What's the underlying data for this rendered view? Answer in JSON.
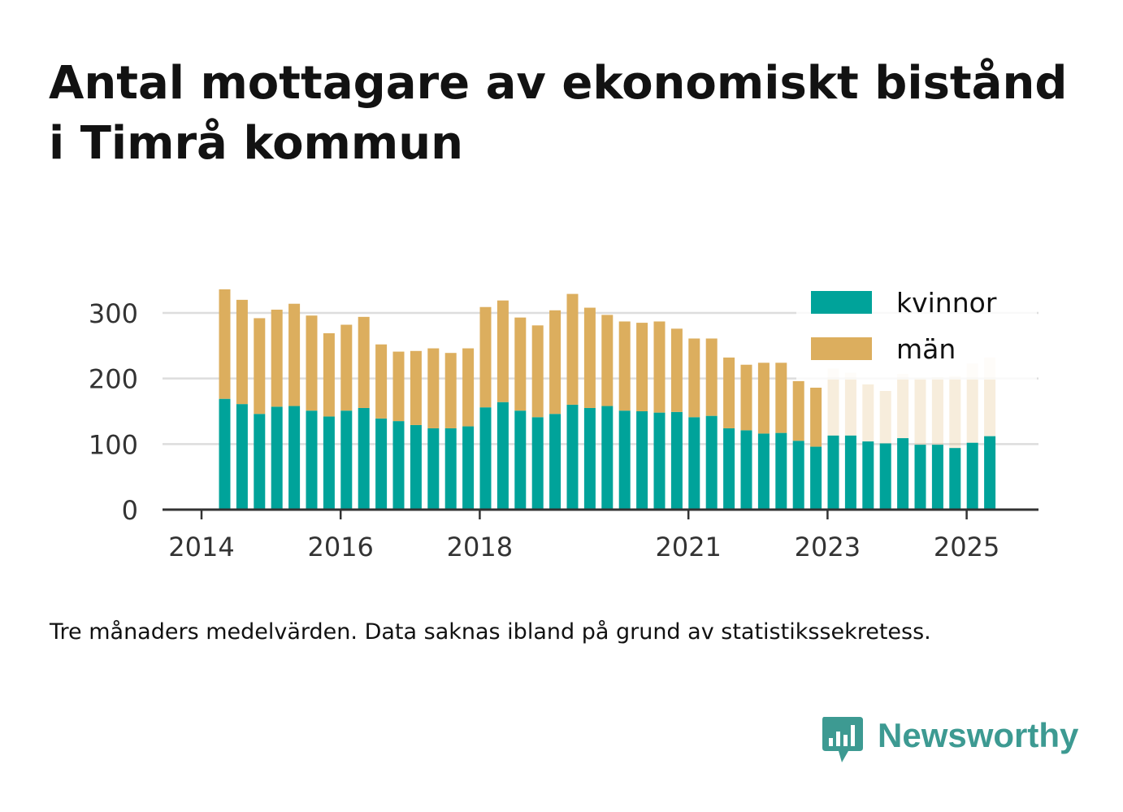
{
  "title": "Antal mottagare av ekonomiskt bistånd i Timrå kommun",
  "caption": "Tre månaders medelvärden. Data saknas ibland på grund av statistikssekretess.",
  "brand": {
    "name": "Newsworthy",
    "icon": "newsworthy-bar-chart-icon",
    "color": "#3d9a92"
  },
  "colors": {
    "kvinnor": "#00a39a",
    "man": "#dcae5e",
    "grid": "#dddddd",
    "axis": "#333333",
    "text": "#333333"
  },
  "chart_data": {
    "type": "bar",
    "stacked": true,
    "title": "Antal mottagare av ekonomiskt bistånd i Timrå kommun",
    "xlabel": "",
    "ylabel": "",
    "x_ticks": [
      "2014",
      "2016",
      "2018",
      "2021",
      "2023",
      "2025"
    ],
    "y_ticks": [
      0,
      100,
      200,
      300
    ],
    "ylim": [
      0,
      350
    ],
    "grid": true,
    "legend_position": "top-right",
    "categories": [
      "2014-04",
      "2014-07",
      "2014-10",
      "2015-01",
      "2015-04",
      "2015-07",
      "2015-10",
      "2016-01",
      "2016-04",
      "2016-07",
      "2016-10",
      "2017-01",
      "2017-04",
      "2017-07",
      "2017-10",
      "2018-01",
      "2018-04",
      "2018-07",
      "2018-10",
      "2019-01",
      "2019-04",
      "2019-07",
      "2019-10",
      "2020-01",
      "2020-04",
      "2020-07",
      "2020-10",
      "2021-01",
      "2021-04",
      "2021-07",
      "2021-10",
      "2022-01",
      "2022-04",
      "2022-07",
      "2022-10",
      "2023-01",
      "2023-04",
      "2023-07",
      "2023-10",
      "2024-01",
      "2024-04",
      "2024-07",
      "2024-10",
      "2025-01",
      "2025-04"
    ],
    "series": [
      {
        "name": "kvinnor",
        "color": "#00a39a",
        "values": [
          169,
          161,
          146,
          157,
          158,
          151,
          142,
          151,
          155,
          139,
          135,
          129,
          124,
          124,
          127,
          156,
          164,
          151,
          141,
          146,
          160,
          155,
          158,
          151,
          150,
          148,
          149,
          141,
          143,
          124,
          121,
          116,
          117,
          105,
          96,
          113,
          113,
          104,
          101,
          109,
          99,
          99,
          94,
          102,
          112
        ]
      },
      {
        "name": "män",
        "color": "#dcae5e",
        "values": [
          167,
          159,
          146,
          148,
          156,
          145,
          127,
          131,
          139,
          113,
          106,
          113,
          122,
          115,
          119,
          153,
          155,
          142,
          140,
          158,
          169,
          153,
          139,
          136,
          135,
          139,
          127,
          120,
          118,
          108,
          100,
          108,
          107,
          91,
          90,
          102,
          96,
          87,
          80,
          98,
          102,
          103,
          110,
          121,
          120
        ]
      }
    ],
    "faded_from_index": 35
  }
}
